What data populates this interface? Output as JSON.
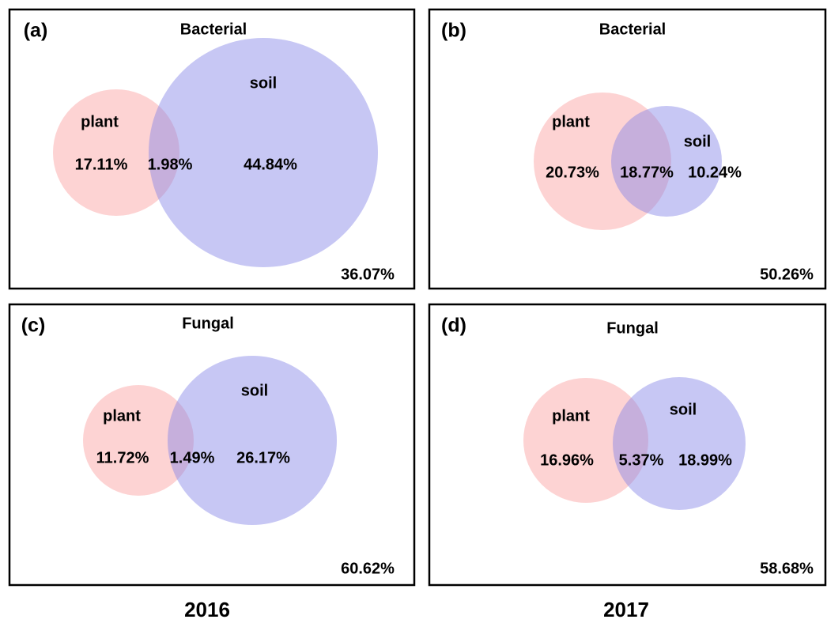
{
  "panels": [
    {
      "letter": "(a)",
      "title": "Bacterial",
      "sets": [
        {
          "label": "plant",
          "only": "17.11%"
        },
        {
          "label": "soil",
          "only": "44.84%"
        }
      ],
      "shared": "1.98%",
      "outside": "36.07%"
    },
    {
      "letter": "(b)",
      "title": "Bacterial",
      "sets": [
        {
          "label": "plant",
          "only": "20.73%"
        },
        {
          "label": "soil",
          "only": "10.24%"
        }
      ],
      "shared": "18.77%",
      "outside": "50.26%"
    },
    {
      "letter": "(c)",
      "title": "Fungal",
      "sets": [
        {
          "label": "plant",
          "only": "11.72%"
        },
        {
          "label": "soil",
          "only": "26.17%"
        }
      ],
      "shared": "1.49%",
      "outside": "60.62%"
    },
    {
      "letter": "(d)",
      "title": "Fungal",
      "sets": [
        {
          "label": "plant",
          "only": "16.96%"
        },
        {
          "label": "soil",
          "only": "18.99%"
        }
      ],
      "shared": "5.37%",
      "outside": "58.68%"
    }
  ],
  "years": [
    "2016",
    "2017"
  ]
}
